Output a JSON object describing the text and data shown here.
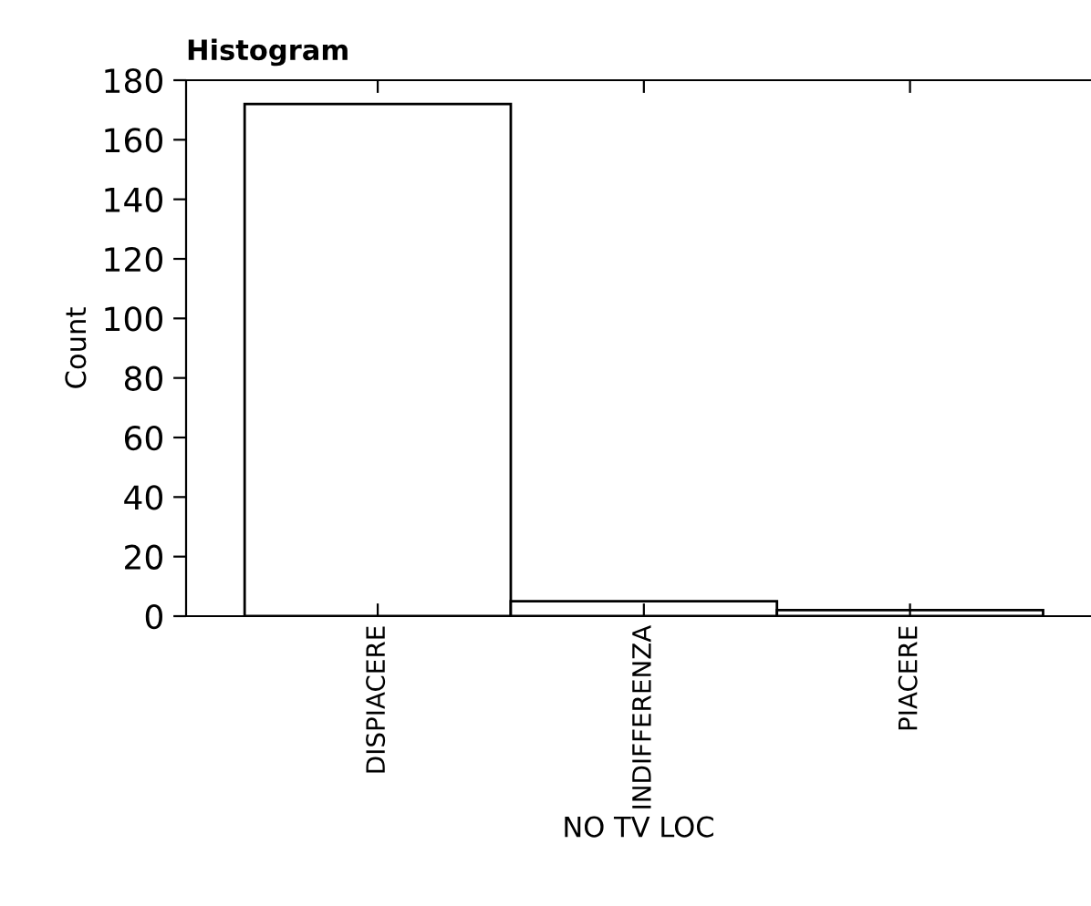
{
  "chart_data": {
    "type": "bar",
    "title": "Histogram",
    "xlabel": "NO TV LOC",
    "ylabel": "Count",
    "categories": [
      "DISPIACERE",
      "INDIFFERENZA",
      "PIACERE"
    ],
    "series": [
      {
        "color": "#ffffff",
        "values": [
          172,
          5,
          2
        ]
      }
    ],
    "ylim": [
      0,
      180
    ],
    "yticks": [
      0,
      20,
      40,
      60,
      80,
      100,
      120,
      140,
      160,
      180
    ],
    "grid": false
  }
}
